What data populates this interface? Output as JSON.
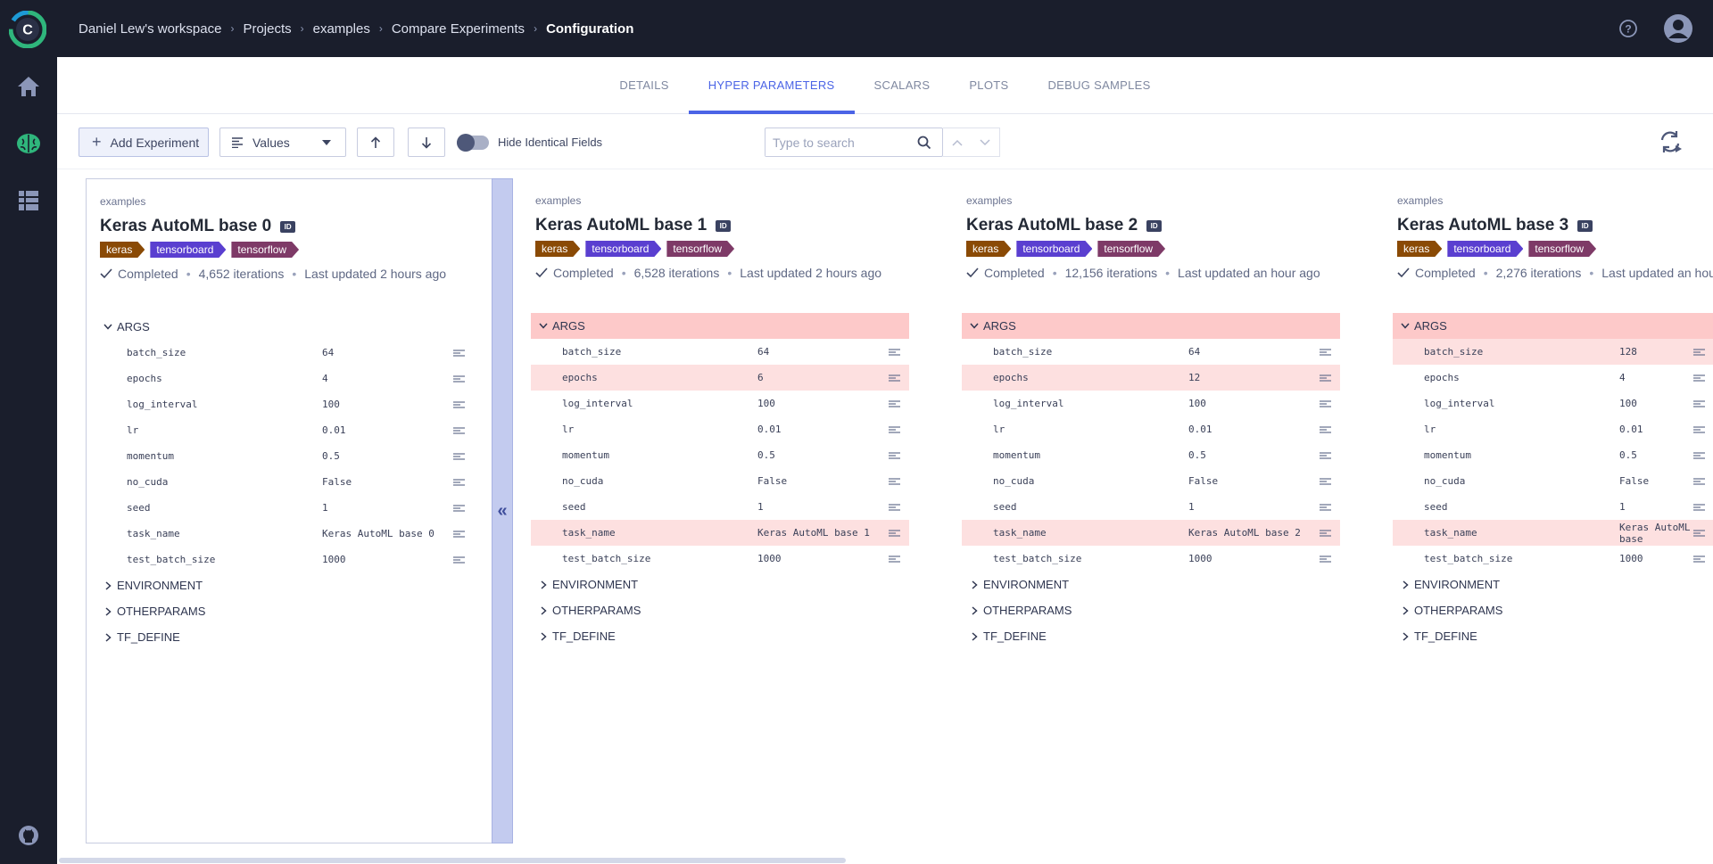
{
  "header": {
    "breadcrumbs": [
      "Daniel Lew's workspace",
      "Projects",
      "examples",
      "Compare Experiments",
      "Configuration"
    ]
  },
  "sidebar": {
    "items": [
      "home-icon",
      "brain-icon",
      "datasets-icon"
    ],
    "bottom": "github-icon"
  },
  "tabs": [
    {
      "label": "DETAILS",
      "active": false
    },
    {
      "label": "HYPER PARAMETERS",
      "active": true
    },
    {
      "label": "SCALARS",
      "active": false
    },
    {
      "label": "PLOTS",
      "active": false
    },
    {
      "label": "DEBUG SAMPLES",
      "active": false
    }
  ],
  "toolbar": {
    "add_label": "Add Experiment",
    "view_selected": "Values",
    "hide_identical_label": "Hide Identical Fields",
    "search_placeholder": "Type to search"
  },
  "colors": {
    "accent": "#4b64e6",
    "tag_keras": "#8a4a05",
    "tag_tensorboard": "#5a3fd0",
    "tag_tensorflow": "#7e3a67",
    "diff_row": "#fde0e0",
    "diff_section": "#fdc9c9"
  },
  "experiments": [
    {
      "project": "examples",
      "name": "Keras AutoML base 0",
      "id_badge": "ID",
      "tags": [
        "keras",
        "tensorboard",
        "tensorflow"
      ],
      "status": "Completed",
      "iterations": "4,652 iterations",
      "updated": "Last updated 2 hours ago",
      "args_diff": false,
      "args": [
        {
          "key": "batch_size",
          "value": "64",
          "diff": false
        },
        {
          "key": "epochs",
          "value": "4",
          "diff": false
        },
        {
          "key": "log_interval",
          "value": "100",
          "diff": false
        },
        {
          "key": "lr",
          "value": "0.01",
          "diff": false
        },
        {
          "key": "momentum",
          "value": "0.5",
          "diff": false
        },
        {
          "key": "no_cuda",
          "value": "False",
          "diff": false
        },
        {
          "key": "seed",
          "value": "1",
          "diff": false
        },
        {
          "key": "task_name",
          "value": "Keras AutoML base 0",
          "diff": false
        },
        {
          "key": "test_batch_size",
          "value": "1000",
          "diff": false
        }
      ]
    },
    {
      "project": "examples",
      "name": "Keras AutoML base 1",
      "id_badge": "ID",
      "tags": [
        "keras",
        "tensorboard",
        "tensorflow"
      ],
      "status": "Completed",
      "iterations": "6,528 iterations",
      "updated": "Last updated 2 hours ago",
      "args_diff": true,
      "args": [
        {
          "key": "batch_size",
          "value": "64",
          "diff": false
        },
        {
          "key": "epochs",
          "value": "6",
          "diff": true
        },
        {
          "key": "log_interval",
          "value": "100",
          "diff": false
        },
        {
          "key": "lr",
          "value": "0.01",
          "diff": false
        },
        {
          "key": "momentum",
          "value": "0.5",
          "diff": false
        },
        {
          "key": "no_cuda",
          "value": "False",
          "diff": false
        },
        {
          "key": "seed",
          "value": "1",
          "diff": false
        },
        {
          "key": "task_name",
          "value": "Keras AutoML base 1",
          "diff": true
        },
        {
          "key": "test_batch_size",
          "value": "1000",
          "diff": false
        }
      ]
    },
    {
      "project": "examples",
      "name": "Keras AutoML base 2",
      "id_badge": "ID",
      "tags": [
        "keras",
        "tensorboard",
        "tensorflow"
      ],
      "status": "Completed",
      "iterations": "12,156 iterations",
      "updated": "Last updated an hour ago",
      "args_diff": true,
      "args": [
        {
          "key": "batch_size",
          "value": "64",
          "diff": false
        },
        {
          "key": "epochs",
          "value": "12",
          "diff": true
        },
        {
          "key": "log_interval",
          "value": "100",
          "diff": false
        },
        {
          "key": "lr",
          "value": "0.01",
          "diff": false
        },
        {
          "key": "momentum",
          "value": "0.5",
          "diff": false
        },
        {
          "key": "no_cuda",
          "value": "False",
          "diff": false
        },
        {
          "key": "seed",
          "value": "1",
          "diff": false
        },
        {
          "key": "task_name",
          "value": "Keras AutoML base 2",
          "diff": true
        },
        {
          "key": "test_batch_size",
          "value": "1000",
          "diff": false
        }
      ]
    },
    {
      "project": "examples",
      "name": "Keras AutoML base 3",
      "id_badge": "ID",
      "tags": [
        "keras",
        "tensorboard",
        "tensorflow"
      ],
      "status": "Completed",
      "iterations": "2,276 iterations",
      "updated": "Last updated an hou",
      "args_diff": true,
      "args": [
        {
          "key": "batch_size",
          "value": "128",
          "diff": true
        },
        {
          "key": "epochs",
          "value": "4",
          "diff": false
        },
        {
          "key": "log_interval",
          "value": "100",
          "diff": false
        },
        {
          "key": "lr",
          "value": "0.01",
          "diff": false
        },
        {
          "key": "momentum",
          "value": "0.5",
          "diff": false
        },
        {
          "key": "no_cuda",
          "value": "False",
          "diff": false
        },
        {
          "key": "seed",
          "value": "1",
          "diff": false
        },
        {
          "key": "task_name",
          "value": "Keras AutoML base",
          "diff": true
        },
        {
          "key": "test_batch_size",
          "value": "1000",
          "diff": false
        }
      ]
    }
  ],
  "sections": {
    "args": "ARGS",
    "collapsed": [
      "ENVIRONMENT",
      "OTHERPARAMS",
      "TF_DEFINE"
    ]
  }
}
